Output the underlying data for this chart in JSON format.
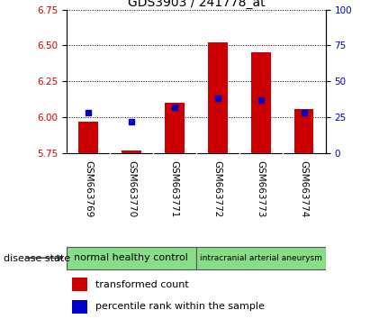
{
  "title": "GDS3903 / 241778_at",
  "samples": [
    "GSM663769",
    "GSM663770",
    "GSM663771",
    "GSM663772",
    "GSM663773",
    "GSM663774"
  ],
  "transformed_count": [
    5.97,
    5.77,
    6.1,
    6.52,
    6.45,
    6.06
  ],
  "percentile_rank": [
    28,
    22,
    32,
    38,
    37,
    28
  ],
  "ylim_left": [
    5.75,
    6.75
  ],
  "ylim_right": [
    0,
    100
  ],
  "yticks_left": [
    5.75,
    6.0,
    6.25,
    6.5,
    6.75
  ],
  "yticks_right": [
    0,
    25,
    50,
    75,
    100
  ],
  "bar_color": "#cc0000",
  "dot_color": "#0000cc",
  "base_value": 5.75,
  "groups": [
    {
      "label": "normal healthy control",
      "samples": [
        0,
        1,
        2
      ],
      "color": "#88dd88"
    },
    {
      "label": "intracranial arterial aneurysm",
      "samples": [
        3,
        4,
        5
      ],
      "color": "#88dd88"
    }
  ],
  "disease_state_label": "disease state",
  "legend_bar_label": "transformed count",
  "legend_dot_label": "percentile rank within the sample",
  "xlabels_bg_color": "#c8c8c8",
  "plot_bg_color": "#ffffff"
}
